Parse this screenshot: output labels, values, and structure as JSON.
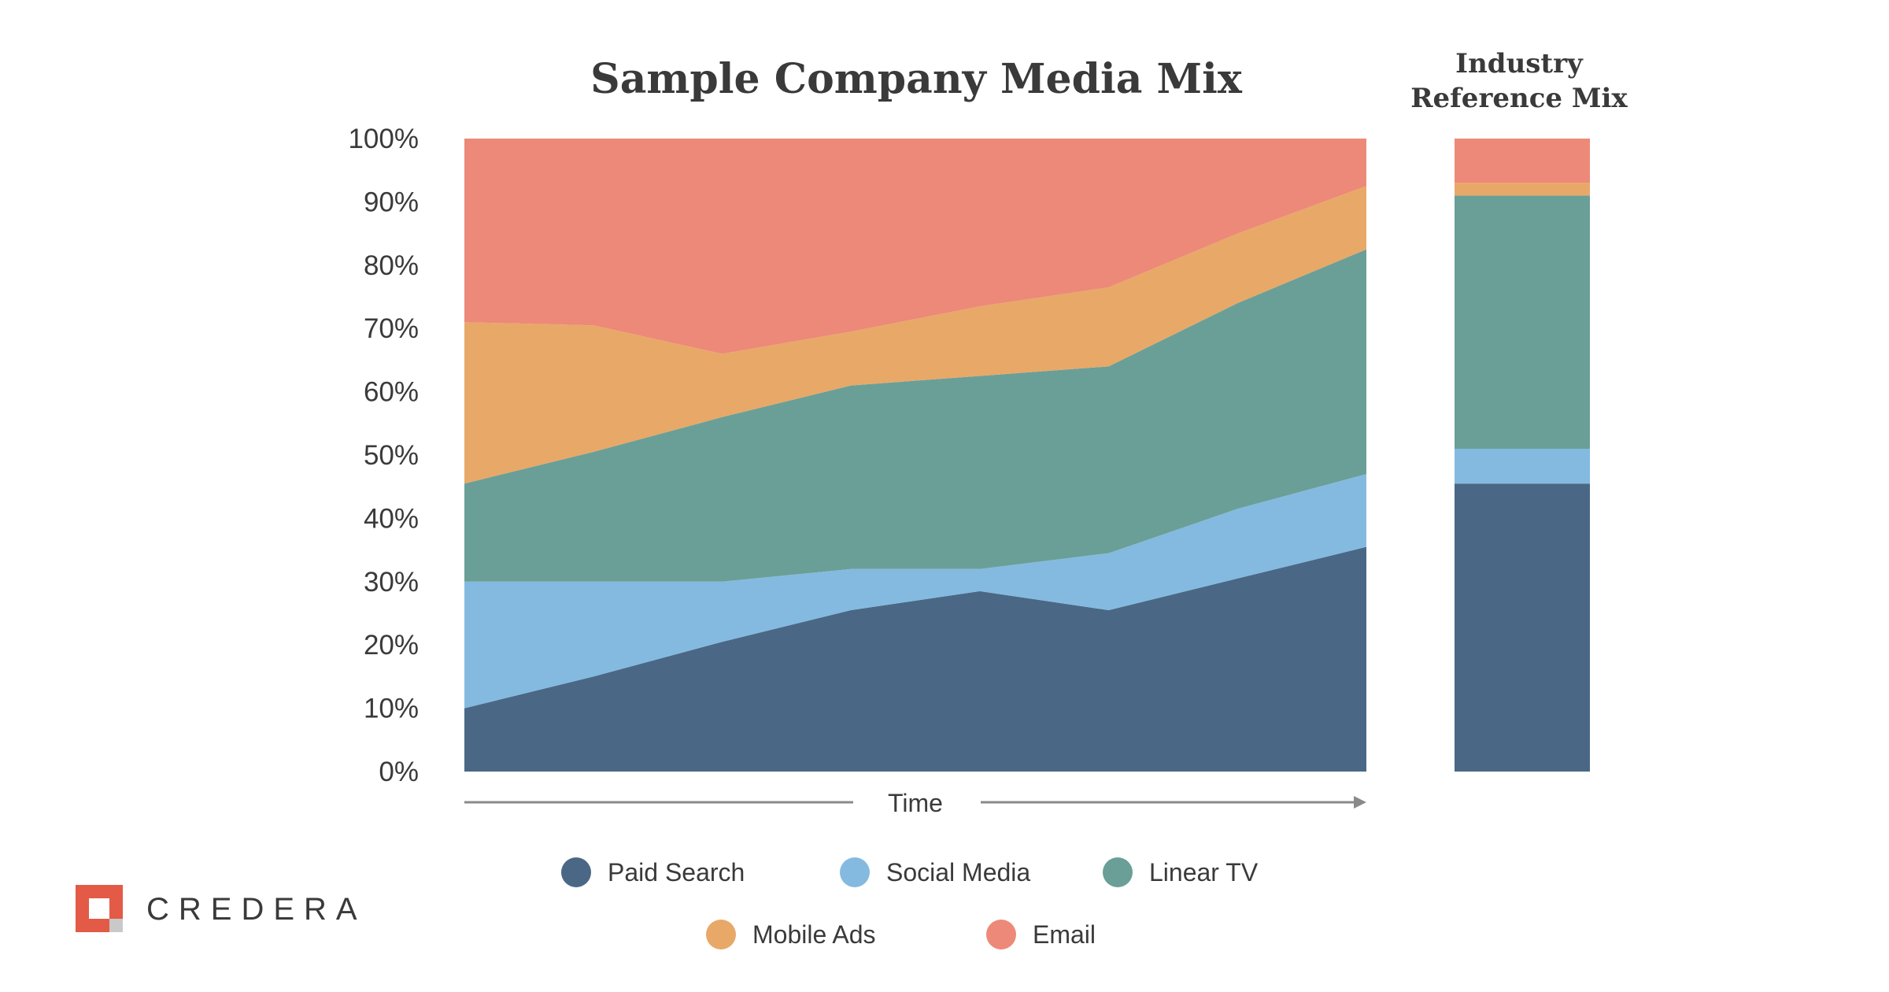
{
  "chart_data": [
    {
      "type": "area",
      "stacked": true,
      "title": "Sample Company Media Mix",
      "xlabel": "Time",
      "ylabel": "",
      "ylim": [
        0,
        100
      ],
      "y_ticks": [
        "0%",
        "10%",
        "20%",
        "30%",
        "40%",
        "50%",
        "60%",
        "70%",
        "80%",
        "90%",
        "100%"
      ],
      "x": [
        0,
        1,
        2,
        3,
        4,
        5,
        6,
        7
      ],
      "series": [
        {
          "name": "Paid Search",
          "color": "#4a6886",
          "values": [
            10,
            15,
            20.5,
            25.5,
            28.5,
            25.5,
            30.5,
            35.5
          ]
        },
        {
          "name": "Social Media",
          "color": "#84bae0",
          "values": [
            20,
            15,
            9.5,
            6.5,
            3.5,
            9,
            11,
            11.5
          ]
        },
        {
          "name": "Linear TV",
          "color": "#6a9f97",
          "values": [
            15.5,
            20.5,
            26,
            29,
            30.5,
            29.5,
            32.5,
            35.5
          ]
        },
        {
          "name": "Mobile Ads",
          "color": "#e8a868",
          "values": [
            25.5,
            20,
            10,
            8.5,
            11,
            12.5,
            11,
            10
          ]
        },
        {
          "name": "Email",
          "color": "#ed8978",
          "values": [
            29,
            29.5,
            34,
            30.5,
            26.5,
            23.5,
            15,
            7.5
          ]
        }
      ]
    },
    {
      "type": "bar",
      "stacked": true,
      "title": "Industry Reference Mix",
      "categories": [
        "Industry Reference Mix"
      ],
      "ylim": [
        0,
        100
      ],
      "series": [
        {
          "name": "Paid Search",
          "color": "#4a6886",
          "values": [
            45.5
          ]
        },
        {
          "name": "Social Media",
          "color": "#84bae0",
          "values": [
            5.5
          ]
        },
        {
          "name": "Linear TV",
          "color": "#6a9f97",
          "values": [
            40
          ]
        },
        {
          "name": "Mobile Ads",
          "color": "#e8a868",
          "values": [
            2
          ]
        },
        {
          "name": "Email",
          "color": "#ed8978",
          "values": [
            7
          ]
        }
      ]
    }
  ],
  "legend": [
    "Paid Search",
    "Social Media",
    "Linear TV",
    "Mobile Ads",
    "Email"
  ],
  "ref_title_lines": [
    "Industry",
    "Reference Mix"
  ],
  "brand": {
    "name": "CREDERA",
    "color": "#e35a46",
    "accent": "#c9c9c9"
  }
}
